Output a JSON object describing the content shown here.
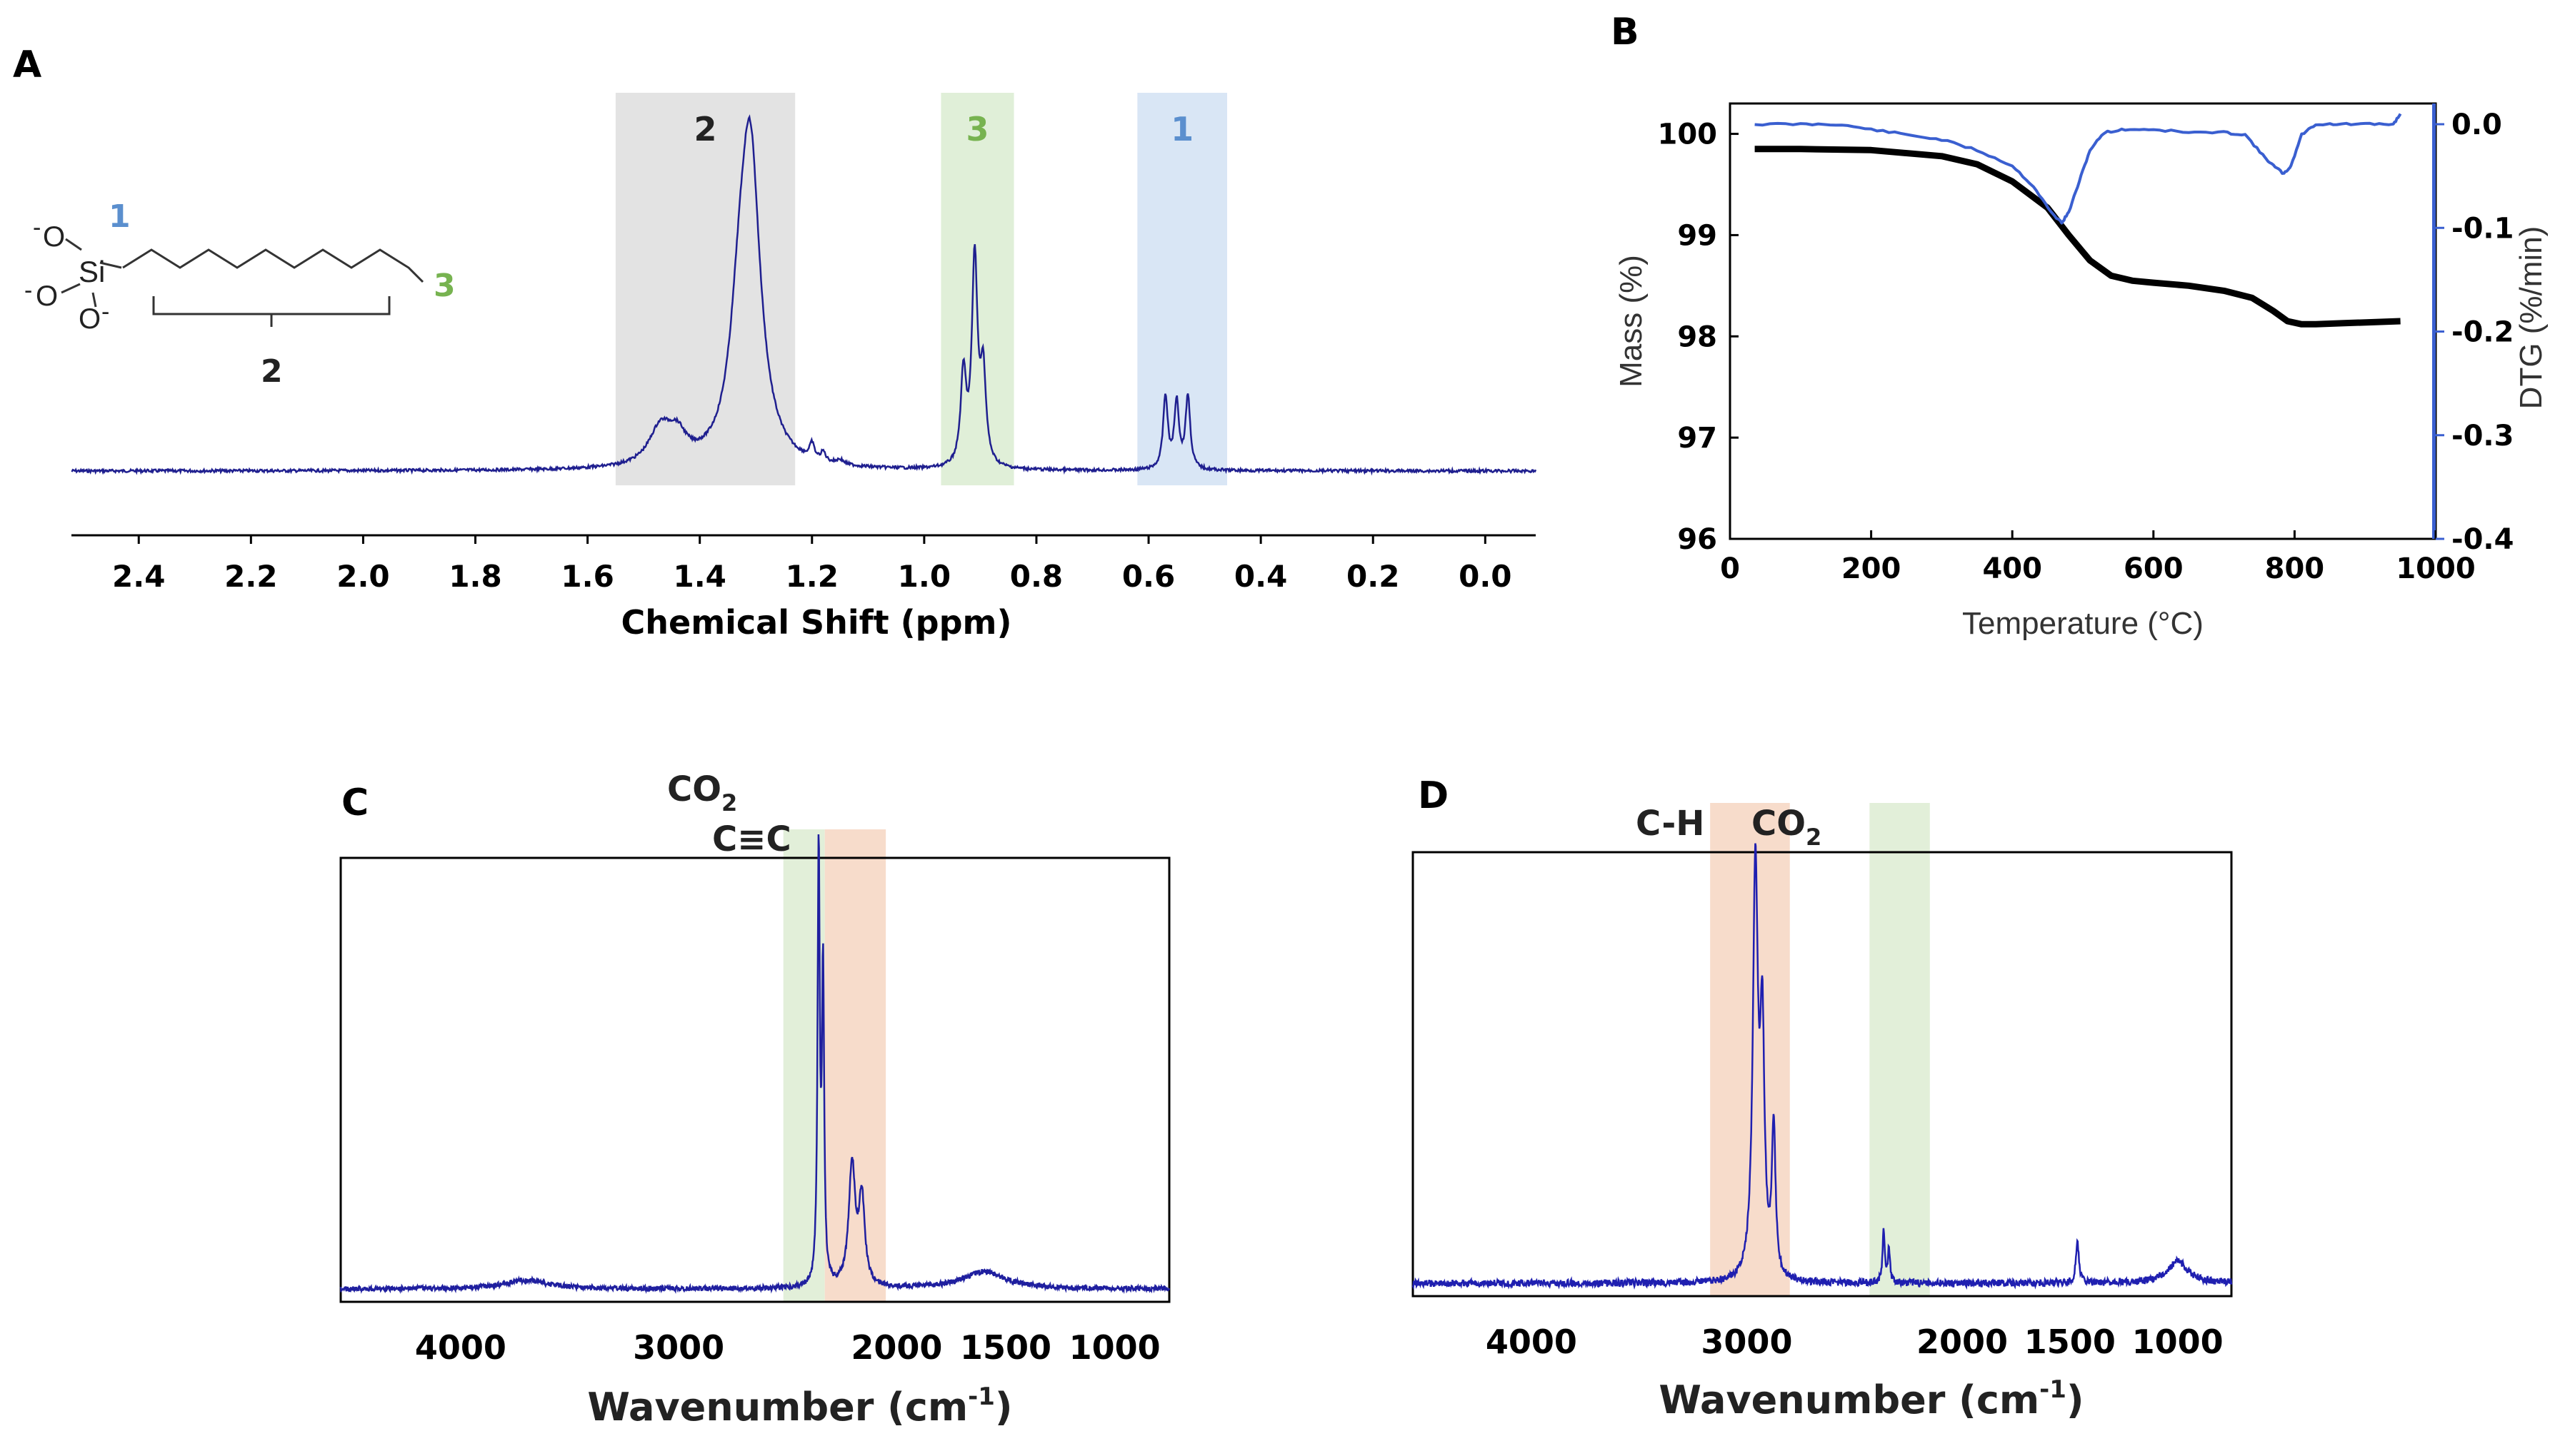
{
  "chart_data": [
    {
      "id": "A",
      "type": "line",
      "panel_label": "A",
      "xlabel": "Chemical Shift (ppm)",
      "xlim": [
        2.52,
        -0.09
      ],
      "x_ticks": [
        "2.4",
        "2.2",
        "2.0",
        "1.8",
        "1.6",
        "1.4",
        "1.2",
        "1.0",
        "0.8",
        "0.6",
        "0.4",
        "0.2",
        "0.0"
      ],
      "x_tick_values": [
        2.4,
        2.2,
        2.0,
        1.8,
        1.6,
        1.4,
        1.2,
        1.0,
        0.8,
        0.6,
        0.4,
        0.2,
        0.0
      ],
      "highlights": [
        {
          "label": "2",
          "from": 1.55,
          "to": 1.23,
          "color": "#e3e3e3",
          "text_color": "#222222"
        },
        {
          "label": "3",
          "from": 0.97,
          "to": 0.84,
          "color": "#e0efd8",
          "text_color": "#77b350"
        },
        {
          "label": "1",
          "from": 0.62,
          "to": 0.46,
          "color": "#d9e6f5",
          "text_color": "#5b8fce"
        }
      ],
      "peaks": [
        {
          "ppm": 1.31,
          "height": 1.0,
          "width": 0.022
        },
        {
          "ppm": 1.33,
          "height": 0.3,
          "width": 0.02
        },
        {
          "ppm": 1.47,
          "height": 0.12,
          "width": 0.025
        },
        {
          "ppm": 1.44,
          "height": 0.08,
          "width": 0.02
        },
        {
          "ppm": 1.2,
          "height": 0.05,
          "width": 0.005
        },
        {
          "ppm": 1.18,
          "height": 0.03,
          "width": 0.005
        },
        {
          "ppm": 1.15,
          "height": 0.015,
          "width": 0.008
        },
        {
          "ppm": 0.93,
          "height": 0.3,
          "width": 0.006
        },
        {
          "ppm": 0.91,
          "height": 0.68,
          "width": 0.006
        },
        {
          "ppm": 0.895,
          "height": 0.3,
          "width": 0.006
        },
        {
          "ppm": 0.57,
          "height": 0.24,
          "width": 0.005
        },
        {
          "ppm": 0.55,
          "height": 0.22,
          "width": 0.005
        },
        {
          "ppm": 0.53,
          "height": 0.24,
          "width": 0.005
        }
      ],
      "structure_labels": {
        "site1": "1",
        "site2": "2",
        "site3": "3",
        "atom_si": "Si",
        "atom_o": "O",
        "charge": "-"
      },
      "line_color": "#1f1f8f"
    },
    {
      "id": "B",
      "type": "line",
      "panel_label": "B",
      "xlabel": "Temperature (°C)",
      "ylabel": "Mass (%)",
      "y2label": "DTG (%/min)",
      "xlim": [
        0,
        1000
      ],
      "ylim": [
        96,
        100.3
      ],
      "y2lim": [
        -0.4,
        0.02
      ],
      "x_ticks": [
        0,
        200,
        400,
        600,
        800,
        1000
      ],
      "y_ticks": [
        96,
        97,
        98,
        99,
        100
      ],
      "y2_ticks": [
        "-0.4",
        "-0.3",
        "-0.2",
        "-0.1",
        "0.0"
      ],
      "y2_tick_values": [
        -0.4,
        -0.3,
        -0.2,
        -0.1,
        0.0
      ],
      "series": [
        {
          "name": "Mass",
          "axis": "left",
          "color": "#000000",
          "x": [
            35,
            100,
            200,
            300,
            350,
            400,
            450,
            480,
            510,
            540,
            570,
            600,
            650,
            700,
            740,
            770,
            790,
            810,
            830,
            870,
            950
          ],
          "y": [
            99.85,
            99.85,
            99.84,
            99.78,
            99.7,
            99.53,
            99.27,
            99.0,
            98.75,
            98.6,
            98.55,
            98.53,
            98.5,
            98.45,
            98.38,
            98.25,
            98.15,
            98.12,
            98.12,
            98.13,
            98.15
          ]
        },
        {
          "name": "DTG",
          "axis": "right",
          "color": "#3a5fd0",
          "x": [
            35,
            100,
            150,
            200,
            250,
            300,
            350,
            400,
            430,
            455,
            470,
            480,
            495,
            510,
            530,
            560,
            600,
            650,
            700,
            730,
            755,
            770,
            785,
            795,
            810,
            830,
            860,
            900,
            940,
            950
          ],
          "y": [
            0.0,
            0.0,
            0.0,
            -0.005,
            -0.01,
            -0.015,
            -0.025,
            -0.04,
            -0.06,
            -0.085,
            -0.095,
            -0.085,
            -0.055,
            -0.025,
            -0.008,
            -0.005,
            -0.005,
            -0.008,
            -0.008,
            -0.01,
            -0.03,
            -0.04,
            -0.048,
            -0.04,
            -0.01,
            0.0,
            0.0,
            0.0,
            0.0,
            0.01
          ]
        }
      ]
    },
    {
      "id": "C",
      "type": "line",
      "panel_label": "C",
      "xlabel_main": "Wavenumber (cm",
      "xlabel_sup": "-1",
      "xlabel_end": ")",
      "xlim": [
        4550,
        750
      ],
      "x_ticks": [
        4000,
        3000,
        2000,
        1500,
        1000
      ],
      "highlights": [
        {
          "label_main": "CO",
          "label_sub": "2",
          "from": 2520,
          "to": 2330,
          "color": "#e2efd9"
        },
        {
          "label_main": "C≡C",
          "label_sub": "",
          "from": 2330,
          "to": 2050,
          "color": "#f7dccb"
        }
      ],
      "peaks": [
        {
          "cm": 2358,
          "height": 1.0,
          "width": 6
        },
        {
          "cm": 2338,
          "height": 0.72,
          "width": 6
        },
        {
          "cm": 2205,
          "height": 0.28,
          "width": 18
        },
        {
          "cm": 2160,
          "height": 0.2,
          "width": 16
        },
        {
          "cm": 1600,
          "height": 0.04,
          "width": 120
        },
        {
          "cm": 3700,
          "height": 0.02,
          "width": 120
        }
      ],
      "line_color": "#1f1f9f"
    },
    {
      "id": "D",
      "type": "line",
      "panel_label": "D",
      "xlabel_main": "Wavenumber (cm",
      "xlabel_sup": "-1",
      "xlabel_end": ")",
      "xlim": [
        4550,
        750
      ],
      "x_ticks": [
        4000,
        3000,
        2000,
        1500,
        1000
      ],
      "highlights": [
        {
          "label_main": "C-H",
          "label_sub": "",
          "from": 3170,
          "to": 2800,
          "color": "#f7dccb"
        },
        {
          "label_main": "CO",
          "label_sub": "2",
          "from": 2430,
          "to": 2150,
          "color": "#e2efd9"
        }
      ],
      "peaks": [
        {
          "cm": 2960,
          "height": 0.95,
          "width": 14
        },
        {
          "cm": 2928,
          "height": 0.55,
          "width": 12
        },
        {
          "cm": 2875,
          "height": 0.35,
          "width": 10
        },
        {
          "cm": 2365,
          "height": 0.12,
          "width": 6
        },
        {
          "cm": 2340,
          "height": 0.08,
          "width": 6
        },
        {
          "cm": 1465,
          "height": 0.1,
          "width": 8
        },
        {
          "cm": 1000,
          "height": 0.05,
          "width": 60
        }
      ],
      "line_color": "#1f1fb0"
    }
  ]
}
